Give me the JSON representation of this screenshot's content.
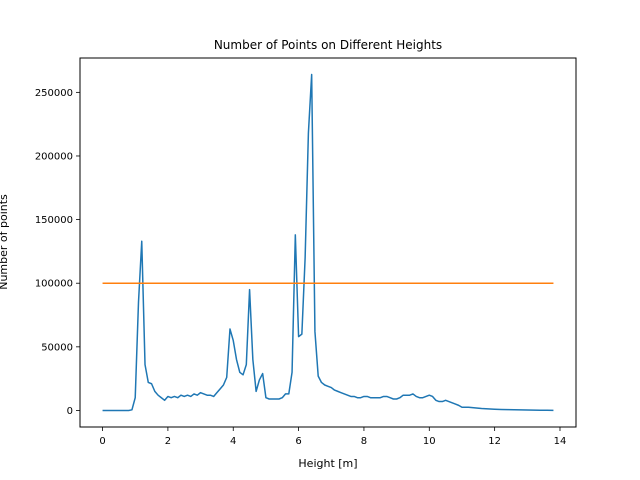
{
  "chart_data": {
    "type": "line",
    "title": "Number of Points on Different Heights",
    "xlabel": "Height [m]",
    "ylabel": "Number of points",
    "xlim": [
      -0.69,
      14.49
    ],
    "ylim": [
      -13000,
      277000
    ],
    "xticks": [
      0,
      2,
      4,
      6,
      8,
      10,
      12,
      14
    ],
    "yticks": [
      0,
      50000,
      100000,
      150000,
      200000,
      250000
    ],
    "grid": false,
    "legend": "none",
    "series": [
      {
        "color": "#1f77b4",
        "x": [
          0,
          0.1,
          0.2,
          0.3,
          0.4,
          0.5,
          0.6,
          0.7,
          0.8,
          0.9,
          1.0,
          1.1,
          1.2,
          1.3,
          1.4,
          1.5,
          1.6,
          1.7,
          1.8,
          1.9,
          2.0,
          2.1,
          2.2,
          2.3,
          2.4,
          2.5,
          2.6,
          2.7,
          2.8,
          2.9,
          3.0,
          3.1,
          3.2,
          3.3,
          3.4,
          3.5,
          3.6,
          3.7,
          3.8,
          3.9,
          4.0,
          4.1,
          4.2,
          4.3,
          4.4,
          4.5,
          4.6,
          4.7,
          4.8,
          4.9,
          5.0,
          5.1,
          5.2,
          5.3,
          5.4,
          5.5,
          5.6,
          5.7,
          5.8,
          5.9,
          6.0,
          6.1,
          6.2,
          6.3,
          6.4,
          6.5,
          6.6,
          6.7,
          6.8,
          6.9,
          7.0,
          7.1,
          7.2,
          7.3,
          7.4,
          7.5,
          7.6,
          7.7,
          7.8,
          7.9,
          8.0,
          8.1,
          8.2,
          8.3,
          8.4,
          8.5,
          8.6,
          8.7,
          8.8,
          8.9,
          9.0,
          9.1,
          9.2,
          9.3,
          9.4,
          9.5,
          9.6,
          9.7,
          9.8,
          9.9,
          10.0,
          10.1,
          10.2,
          10.3,
          10.4,
          10.5,
          10.6,
          10.7,
          10.8,
          10.9,
          11.0,
          11.2,
          11.4,
          11.6,
          11.8,
          12.0,
          12.2,
          12.4,
          12.6,
          12.8,
          13.0,
          13.2,
          13.4,
          13.6,
          13.8
        ],
        "y": [
          0,
          0,
          0,
          0,
          0,
          0,
          0,
          0,
          0,
          500,
          10000,
          85000,
          133000,
          36000,
          22000,
          21000,
          15000,
          12000,
          10000,
          8000,
          11000,
          10000,
          11000,
          10000,
          12000,
          11000,
          12000,
          11000,
          13000,
          12000,
          14000,
          13000,
          12000,
          12000,
          11000,
          14000,
          17000,
          20000,
          26000,
          64000,
          55000,
          40000,
          30000,
          28000,
          36000,
          95000,
          40000,
          15000,
          24000,
          29000,
          10000,
          9000,
          9000,
          9000,
          9000,
          10000,
          13000,
          13000,
          30000,
          138000,
          58000,
          60000,
          120000,
          218000,
          264000,
          62000,
          27000,
          22000,
          20000,
          19000,
          18000,
          16000,
          15000,
          14000,
          13000,
          12000,
          11000,
          11000,
          10000,
          10000,
          11000,
          11000,
          10000,
          10000,
          10000,
          10000,
          11000,
          11000,
          10000,
          9000,
          9000,
          10000,
          12000,
          12000,
          12000,
          13000,
          11000,
          10000,
          10000,
          11000,
          12000,
          11000,
          8000,
          7000,
          7000,
          8000,
          7000,
          6000,
          5000,
          4000,
          2500,
          2500,
          2000,
          1500,
          1200,
          1000,
          800,
          700,
          600,
          500,
          400,
          300,
          200,
          150,
          100
        ]
      },
      {
        "color": "#ff7f0e",
        "x": [
          0,
          13.8
        ],
        "y": [
          100000,
          100000
        ]
      }
    ]
  }
}
